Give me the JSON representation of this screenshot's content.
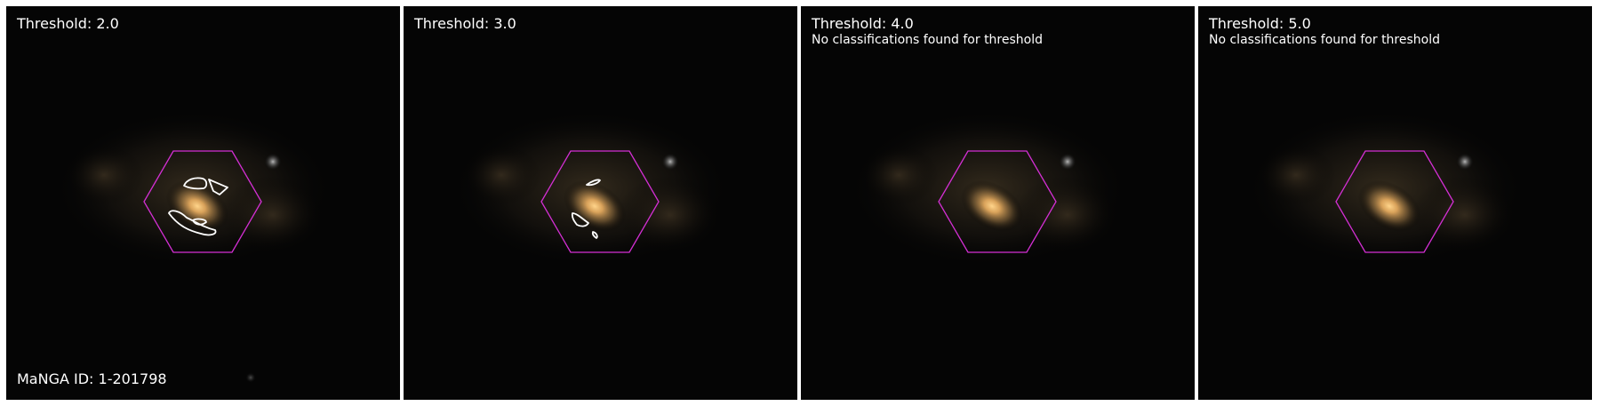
{
  "panels": [
    {
      "title": "Threshold: 2.0",
      "subtitle": "",
      "footer": "MaNGA ID: 1-201798",
      "contour_count": 4
    },
    {
      "title": "Threshold: 3.0",
      "subtitle": "",
      "footer": "",
      "contour_count": 3
    },
    {
      "title": "Threshold: 4.0",
      "subtitle": "No classifications found for threshold",
      "footer": "",
      "contour_count": 0
    },
    {
      "title": "Threshold: 5.0",
      "subtitle": "No classifications found for threshold",
      "footer": "",
      "contour_count": 0
    }
  ],
  "colors": {
    "hexagon": "#d42fd4",
    "contour": "#ffffff",
    "galaxy_core": "#f6c37a",
    "sky": "#050505"
  }
}
